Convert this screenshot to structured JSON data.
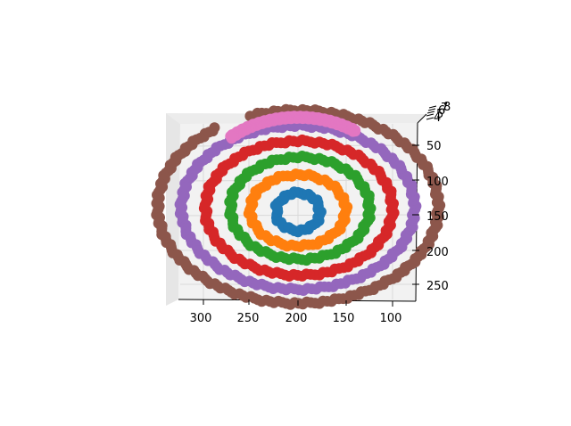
{
  "chart_data": {
    "type": "scatter",
    "projection": "3d",
    "title": "",
    "xlabel": "",
    "ylabel": "",
    "zlabel": "",
    "x_ticks": [
      300,
      250,
      200,
      150,
      100
    ],
    "y_ticks": [
      50,
      100,
      150,
      200,
      250
    ],
    "z_ticks": [
      4,
      5,
      6,
      7,
      8
    ],
    "xlim": [
      80,
      330
    ],
    "ylim": [
      0,
      280
    ],
    "grid": true,
    "series": [
      {
        "color": "#1f77b4",
        "shape": "ring",
        "center": [
          200,
          145
        ],
        "radius_x": 23,
        "radius_y": 27,
        "arc": "full"
      },
      {
        "color": "#ff7f0e",
        "shape": "ring",
        "center": [
          200,
          143
        ],
        "radius_x": 50,
        "radius_y": 51,
        "arc": "full"
      },
      {
        "color": "#2ca02c",
        "shape": "ring",
        "center": [
          198,
          140
        ],
        "radius_x": 73,
        "radius_y": 73,
        "arc": "full"
      },
      {
        "color": "#d62728",
        "shape": "ring",
        "center": [
          199,
          140
        ],
        "radius_x": 98,
        "radius_y": 96,
        "arc": "full"
      },
      {
        "color": "#9467bd",
        "shape": "ring",
        "center": [
          200,
          139
        ],
        "radius_x": 122,
        "radius_y": 117,
        "arc": "full"
      },
      {
        "color": "#8c564b",
        "shape": "ring",
        "center": [
          200,
          138
        ],
        "radius_x": 147,
        "radius_y": 138,
        "arc": "partial"
      },
      {
        "color": "#e377c2",
        "shape": "arc",
        "center": [
          200,
          138
        ],
        "radius_x": 112,
        "radius_y": 128,
        "arc": "top"
      }
    ]
  }
}
